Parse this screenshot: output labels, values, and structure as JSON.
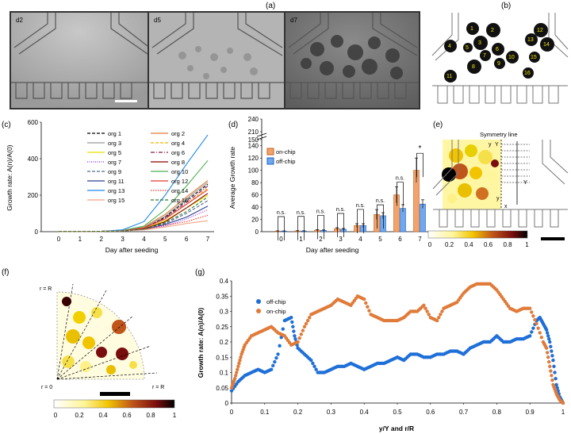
{
  "panels": {
    "a": "(a)",
    "b": "(b)",
    "c": "(c)",
    "d": "(d)",
    "e": "(e)",
    "f": "(f)",
    "g": "(g)"
  },
  "micrographs": [
    "d2",
    "d5",
    "d7"
  ],
  "organoid_numbers": [
    "1",
    "2",
    "3",
    "4",
    "5",
    "6",
    "7",
    "8",
    "9",
    "10",
    "11",
    "12",
    "13",
    "14",
    "15",
    "16"
  ],
  "panel_e": {
    "symmetry_label": "Symmetry line",
    "y_label": "y",
    "Y_label": "Y",
    "x_label": "x",
    "colorbar_ticks": [
      "0",
      "0.2",
      "0.4",
      "0.6",
      "0.8",
      "1"
    ]
  },
  "panel_f": {
    "r_top": "r = R",
    "r_origin": "r = 0",
    "r_right": "r = R",
    "colorbar_ticks": [
      "0",
      "0.2",
      "0.4",
      "0.6",
      "0.8",
      "1"
    ]
  },
  "colors": {
    "on_chip": "#e07b39",
    "off_chip": "#1f6fd8",
    "panel_d_on": "#f2a36b",
    "panel_d_off": "#6fa8f0"
  },
  "chart_data": [
    {
      "type": "line",
      "panel": "c",
      "title": "",
      "xlabel": "Day after seeding",
      "ylabel": "Growth rate: A(n)/A(0)",
      "x": [
        0,
        1,
        2,
        3,
        4,
        5,
        6,
        7
      ],
      "xticks": [
        "0",
        "1",
        "2",
        "3",
        "4",
        "5",
        "6",
        "7"
      ],
      "yticks": [
        "0",
        "200",
        "400",
        "600"
      ],
      "ylim": [
        0,
        600
      ],
      "series": [
        {
          "name": "org 1",
          "color": "#000000",
          "dash": "4,2",
          "values": [
            1,
            1,
            2,
            5,
            20,
            80,
            170,
            260
          ]
        },
        {
          "name": "org 2",
          "color": "#e07b39",
          "dash": "",
          "values": [
            1,
            1,
            2,
            6,
            25,
            95,
            190,
            280
          ]
        },
        {
          "name": "org 3",
          "color": "#999999",
          "dash": "",
          "values": [
            1,
            1,
            2,
            5,
            22,
            85,
            180,
            270
          ]
        },
        {
          "name": "org 4",
          "color": "#f2b300",
          "dash": "4,2",
          "values": [
            1,
            1,
            2,
            4,
            18,
            70,
            150,
            240
          ]
        },
        {
          "name": "org 5",
          "color": "#e8e000",
          "dash": "",
          "values": [
            1,
            1,
            2,
            4,
            15,
            60,
            130,
            200
          ]
        },
        {
          "name": "org 6",
          "color": "#8b1a4a",
          "dash": "5,2,1,2",
          "values": [
            1,
            1,
            2,
            5,
            20,
            75,
            160,
            250
          ]
        },
        {
          "name": "org 7",
          "color": "#8a2be2",
          "dash": "1,1.5",
          "values": [
            1,
            1,
            2,
            3,
            10,
            30,
            70,
            120
          ]
        },
        {
          "name": "org 8",
          "color": "#8b0000",
          "dash": "",
          "values": [
            1,
            1,
            2,
            4,
            15,
            55,
            130,
            210
          ]
        },
        {
          "name": "org 9",
          "color": "#556b8d",
          "dash": "4,2",
          "values": [
            1,
            1,
            2,
            4,
            14,
            45,
            100,
            170
          ]
        },
        {
          "name": "org 10",
          "color": "#4caf50",
          "dash": "",
          "values": [
            1,
            1,
            2,
            7,
            30,
            120,
            250,
            390
          ]
        },
        {
          "name": "org 11",
          "color": "#2e3f8f",
          "dash": "",
          "values": [
            1,
            1,
            2,
            4,
            12,
            40,
            80,
            140
          ]
        },
        {
          "name": "org 12",
          "color": "#e53935",
          "dash": "",
          "values": [
            1,
            1,
            2,
            5,
            20,
            70,
            150,
            230
          ]
        },
        {
          "name": "org 13",
          "color": "#1e88e5",
          "dash": "",
          "values": [
            1,
            1,
            2,
            10,
            55,
            200,
            370,
            530
          ]
        },
        {
          "name": "org 14",
          "color": "#e53935",
          "dash": "1.5,1.5",
          "values": [
            1,
            1,
            2,
            4,
            12,
            35,
            55,
            90
          ]
        },
        {
          "name": "org 15",
          "color": "#f4a582",
          "dash": "",
          "values": [
            1,
            1,
            2,
            4,
            10,
            25,
            45,
            60
          ]
        },
        {
          "name": "org 16",
          "color": "#2e7d32",
          "dash": "4,2",
          "values": [
            1,
            1,
            2,
            4,
            14,
            50,
            110,
            190
          ]
        }
      ]
    },
    {
      "type": "bar",
      "panel": "d",
      "xlabel": "Day after seeding",
      "ylabel": "Average Growth rate",
      "categories": [
        "0",
        "1",
        "2",
        "3",
        "4",
        "5",
        "6",
        "7"
      ],
      "yticks": [
        "0",
        "20",
        "40",
        "60",
        "80",
        "100",
        "120",
        "140",
        "150",
        "210",
        "240"
      ],
      "series": [
        {
          "name": "on-chip",
          "values": [
            1,
            1.2,
            2.5,
            5,
            10,
            28,
            60,
            100
          ],
          "errors": [
            0.3,
            0.4,
            0.8,
            1.5,
            3,
            8,
            13,
            20
          ]
        },
        {
          "name": "off-chip",
          "values": [
            1,
            1.1,
            2.2,
            4,
            10,
            26,
            38,
            45
          ],
          "errors": [
            0.3,
            0.4,
            0.7,
            1.2,
            3,
            5,
            6,
            7
          ]
        }
      ],
      "significance": [
        "n.s.",
        "n.s.",
        "n.s.",
        "n.s.",
        "n.s.",
        "n.s.",
        "n.s.",
        "*"
      ]
    },
    {
      "type": "scatter",
      "panel": "g",
      "xlabel": "y/Y and r/R",
      "ylabel": "Growth rate: A(n)/A(0)",
      "xlim": [
        0,
        1
      ],
      "ylim": [
        0,
        0.4
      ],
      "xticks": [
        "0",
        "0.1",
        "0.2",
        "0.3",
        "0.4",
        "0.5",
        "0.6",
        "0.7",
        "0.8",
        "0.9",
        "1"
      ],
      "yticks": [
        "0",
        "0.05",
        "0.1",
        "0.15",
        "0.2",
        "0.25",
        "0.3",
        "0.35",
        "0.4"
      ],
      "series": [
        {
          "name": "off-chip",
          "color": "#1f6fd8",
          "x": [
            0,
            0.02,
            0.04,
            0.06,
            0.08,
            0.1,
            0.12,
            0.14,
            0.16,
            0.18,
            0.19,
            0.2,
            0.22,
            0.24,
            0.26,
            0.28,
            0.3,
            0.32,
            0.34,
            0.36,
            0.38,
            0.4,
            0.42,
            0.44,
            0.46,
            0.48,
            0.5,
            0.52,
            0.54,
            0.56,
            0.58,
            0.6,
            0.62,
            0.64,
            0.66,
            0.68,
            0.7,
            0.72,
            0.74,
            0.76,
            0.78,
            0.8,
            0.82,
            0.84,
            0.86,
            0.88,
            0.9,
            0.92,
            0.93,
            0.94,
            0.95,
            0.96,
            0.97,
            0.98,
            0.99,
            1.0
          ],
          "y": [
            0.04,
            0.07,
            0.09,
            0.1,
            0.11,
            0.1,
            0.11,
            0.16,
            0.27,
            0.28,
            0.22,
            0.18,
            0.16,
            0.14,
            0.1,
            0.1,
            0.11,
            0.12,
            0.12,
            0.13,
            0.12,
            0.11,
            0.12,
            0.13,
            0.13,
            0.14,
            0.15,
            0.14,
            0.16,
            0.16,
            0.15,
            0.15,
            0.16,
            0.16,
            0.17,
            0.17,
            0.16,
            0.18,
            0.19,
            0.2,
            0.2,
            0.22,
            0.2,
            0.2,
            0.21,
            0.21,
            0.22,
            0.27,
            0.28,
            0.26,
            0.24,
            0.2,
            0.14,
            0.06,
            0.02,
            0.0
          ]
        },
        {
          "name": "on-chip",
          "color": "#e07b39",
          "x": [
            0,
            0.01,
            0.02,
            0.03,
            0.04,
            0.06,
            0.08,
            0.1,
            0.12,
            0.14,
            0.16,
            0.18,
            0.2,
            0.22,
            0.24,
            0.26,
            0.28,
            0.3,
            0.32,
            0.34,
            0.36,
            0.38,
            0.4,
            0.42,
            0.44,
            0.46,
            0.48,
            0.5,
            0.52,
            0.54,
            0.56,
            0.58,
            0.6,
            0.62,
            0.64,
            0.66,
            0.68,
            0.7,
            0.72,
            0.74,
            0.76,
            0.78,
            0.8,
            0.82,
            0.84,
            0.86,
            0.88,
            0.9,
            0.92,
            0.94,
            0.95,
            0.96,
            0.97,
            0.98,
            0.99,
            1.0
          ],
          "y": [
            0.05,
            0.08,
            0.12,
            0.16,
            0.19,
            0.22,
            0.23,
            0.24,
            0.25,
            0.23,
            0.22,
            0.19,
            0.2,
            0.25,
            0.29,
            0.3,
            0.31,
            0.32,
            0.34,
            0.33,
            0.32,
            0.35,
            0.34,
            0.29,
            0.28,
            0.27,
            0.27,
            0.27,
            0.28,
            0.3,
            0.3,
            0.32,
            0.28,
            0.27,
            0.31,
            0.32,
            0.33,
            0.36,
            0.38,
            0.39,
            0.39,
            0.39,
            0.37,
            0.34,
            0.31,
            0.3,
            0.31,
            0.31,
            0.26,
            0.2,
            0.18,
            0.12,
            0.06,
            0.03,
            0.01,
            0.0
          ]
        }
      ]
    }
  ]
}
